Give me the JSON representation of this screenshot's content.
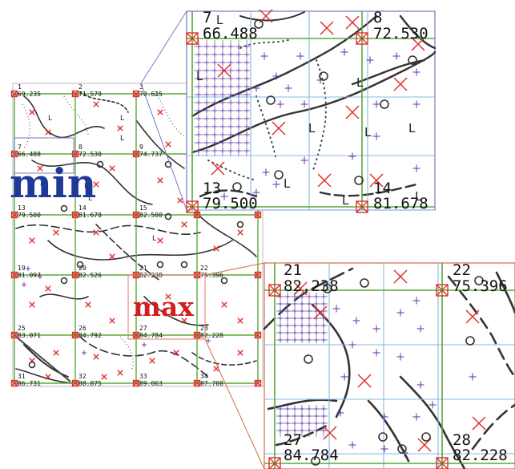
{
  "colors": {
    "grid": "#5aa83a",
    "cross": "#e0302a",
    "plus": "#6a3fb0",
    "contour": "#333333",
    "zoom_top_border": "#7a78c0",
    "zoom_bottom_border": "#d96a4a",
    "min_text": "#1f3a96",
    "max_text": "#d21e1e"
  },
  "annotations": {
    "min_label": "min",
    "max_label": "max"
  },
  "map_points": [
    {
      "id": "1",
      "value": "69.235"
    },
    {
      "id": "2",
      "value": "71.579"
    },
    {
      "id": "3",
      "value": "70.625"
    },
    {
      "id": "7",
      "value": "66.488"
    },
    {
      "id": "8",
      "value": "72.530"
    },
    {
      "id": "9",
      "value": "74.737"
    },
    {
      "id": "13",
      "value": "79.500"
    },
    {
      "id": "14",
      "value": "81.678"
    },
    {
      "id": "15",
      "value": "82.500"
    },
    {
      "id": "19",
      "value": "81.097"
    },
    {
      "id": "20",
      "value": "82.526"
    },
    {
      "id": "21",
      "value": "82.238"
    },
    {
      "id": "22",
      "value": "75.396"
    },
    {
      "id": "25",
      "value": "83.071"
    },
    {
      "id": "26",
      "value": "84.792"
    },
    {
      "id": "27",
      "value": "84.784"
    },
    {
      "id": "28",
      "value": "82.228"
    },
    {
      "id": "31",
      "value": "86.731"
    },
    {
      "id": "32",
      "value": "88.875"
    },
    {
      "id": "33",
      "value": "89.063"
    },
    {
      "id": "34",
      "value": "87.708"
    }
  ],
  "zoom_top": {
    "tl_id": "7",
    "tl_value": "66.488",
    "tr_id": "8",
    "tr_value": "72.530",
    "bl_id": "13",
    "bl_value": "79.500",
    "br_id": "14",
    "br_value": "81.678"
  },
  "zoom_bottom": {
    "tl_id": "21",
    "tl_value": "82.238",
    "tr_id": "22",
    "tr_value": "75.396",
    "bl_id": "27",
    "bl_value": "84.784",
    "br_id": "28",
    "br_value": "82.228"
  }
}
